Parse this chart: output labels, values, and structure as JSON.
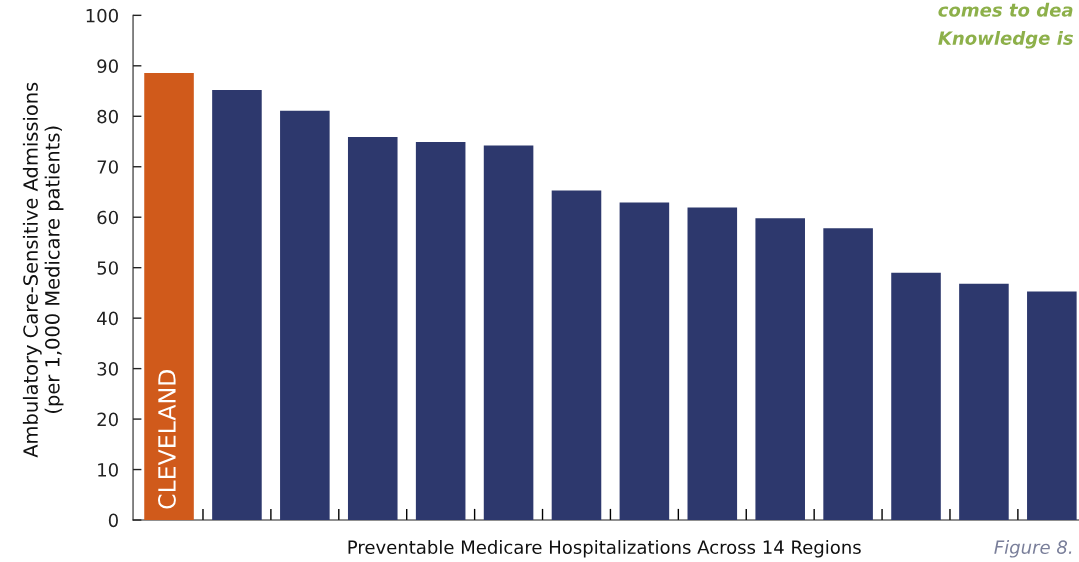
{
  "chart_data": {
    "type": "bar",
    "xlabel": "Preventable Medicare Hospitalizations Across 14 Regions",
    "ylabel": "Ambulatory Care-Sensitive Admissions\n(per 1,000 Medicare patients)",
    "categories": [
      "CLEVELAND",
      null,
      null,
      null,
      null,
      null,
      null,
      null,
      null,
      null,
      null,
      null,
      null,
      null
    ],
    "values": [
      88.6,
      85.2,
      81.1,
      75.9,
      74.9,
      74.2,
      65.3,
      62.9,
      61.9,
      59.8,
      57.8,
      49.0,
      46.8,
      45.3
    ],
    "colors": [
      "#d05a1b",
      "#2d386d",
      "#2d386d",
      "#2d386d",
      "#2d386d",
      "#2d386d",
      "#2d386d",
      "#2d386d",
      "#2d386d",
      "#2d386d",
      "#2d386d",
      "#2d386d",
      "#2d386d",
      "#2d386d"
    ],
    "ylim": [
      0,
      100
    ],
    "yticks": [
      0,
      10,
      20,
      30,
      40,
      50,
      60,
      70,
      80,
      90,
      100
    ],
    "grid": false,
    "legend": false,
    "annotations": [
      "comes to dea",
      "Knowledge is",
      "Figure 8."
    ]
  }
}
